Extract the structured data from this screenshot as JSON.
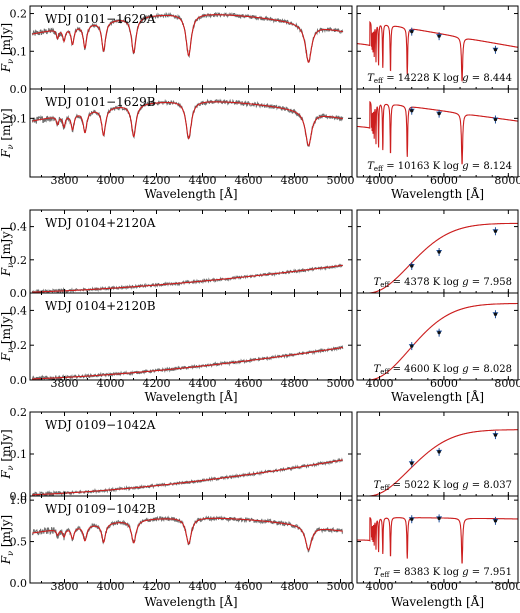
{
  "chart_data": {
    "type": "line",
    "xlabel": "Wavelength [Å]",
    "ylabel": "F_ν [mJy]",
    "colors": {
      "model": "#cc1f1f",
      "spectrum": "#6e6e6e",
      "photometry": "#1f4e9a",
      "synthetic": "#111111"
    },
    "panels": [
      {
        "name": "WDJ 0101−1629A",
        "profile": "da",
        "depth": 0.9,
        "level": 0.142,
        "rise": 0.058,
        "ylim": [
          0,
          0.22
        ],
        "yticks": [
          0,
          0.1,
          0.2
        ],
        "yticklabels": [
          "0.0",
          "0.1",
          "0.2"
        ],
        "teff": "14228",
        "logg": "8.444",
        "phot_x": [
          5000,
          5850,
          7600
        ],
        "phot_y": [
          0.152,
          0.14,
          0.104
        ],
        "sed_profile": "da",
        "sed_level": 0.16,
        "sed_slope": -1.5e-05,
        "sed_depth": 0.85
      },
      {
        "name": "WDJ 0101−1629B",
        "profile": "da",
        "depth": 0.8,
        "level": 0.093,
        "rise": 0.037,
        "ylim": [
          0,
          0.15
        ],
        "yticks": [
          0.1
        ],
        "yticklabels": [
          "0.1"
        ],
        "teff": "10163",
        "logg": "8.124",
        "phot_x": [
          5000,
          5850,
          7600
        ],
        "phot_y": [
          0.113,
          0.108,
          0.098
        ],
        "sed_profile": "da",
        "sed_level": 0.12,
        "sed_slope": -7.5e-06,
        "sed_depth": 0.8
      },
      {
        "name": "WDJ 0104+2120A",
        "profile": "cool",
        "scale": 0.165,
        "ylim": [
          0,
          0.5
        ],
        "yticks": [
          0,
          0.2,
          0.4
        ],
        "yticklabels": [
          "0.0",
          "0.2",
          "0.4"
        ],
        "teff": "4378",
        "logg": "7.958",
        "phot_x": [
          5000,
          5850,
          7600
        ],
        "phot_y": [
          0.163,
          0.247,
          0.372
        ],
        "sed_profile": "cool",
        "sed_scale": 0.42
      },
      {
        "name": "WDJ 0104+2120B",
        "profile": "cool",
        "scale": 0.185,
        "ylim": [
          0,
          0.5
        ],
        "yticks": [
          0,
          0.2,
          0.4
        ],
        "yticklabels": [
          "0.0",
          "0.2",
          "0.4"
        ],
        "teff": "4600",
        "logg": "8.028",
        "phot_x": [
          5000,
          5850,
          7600
        ],
        "phot_y": [
          0.195,
          0.272,
          0.378
        ],
        "sed_profile": "cool",
        "sed_scale": 0.44
      },
      {
        "name": "WDJ 0109−1042A",
        "profile": "cool",
        "scale": 0.085,
        "ylim": [
          0,
          0.2
        ],
        "yticks": [
          0,
          0.1,
          0.2
        ],
        "yticklabels": [
          "0.0",
          "0.1",
          "0.2"
        ],
        "teff": "5022",
        "logg": "8.037",
        "phot_x": [
          5000,
          5850,
          7600
        ],
        "phot_y": [
          0.078,
          0.105,
          0.145
        ],
        "sed_profile": "cool",
        "sed_scale": 0.158
      },
      {
        "name": "WDJ 0109−1042B",
        "profile": "da",
        "depth": 0.65,
        "level": 0.59,
        "rise": 0.2,
        "ylim": [
          0,
          1.05
        ],
        "yticks": [
          0,
          0.5,
          1.0
        ],
        "yticklabels": [
          "0.0",
          "0.5",
          "1.0"
        ],
        "teff": "8383",
        "logg": "7.951",
        "phot_x": [
          5000,
          5850,
          7600
        ],
        "phot_y": [
          0.77,
          0.78,
          0.75
        ],
        "sed_profile": "da",
        "sed_level": 0.79,
        "sed_slope": -5e-06,
        "sed_depth": 0.7
      }
    ],
    "left_xlim": [
      3650,
      5050
    ],
    "left_xticks": [
      3800,
      4000,
      4200,
      4400,
      4600,
      4800,
      5000
    ],
    "right_xlim": [
      3300,
      8300
    ],
    "right_xticks": [
      4000,
      6000,
      8000
    ],
    "teff_label": "T",
    "teff_sub": "eff",
    "teff_unit": "K",
    "logg_label": "log g ="
  }
}
